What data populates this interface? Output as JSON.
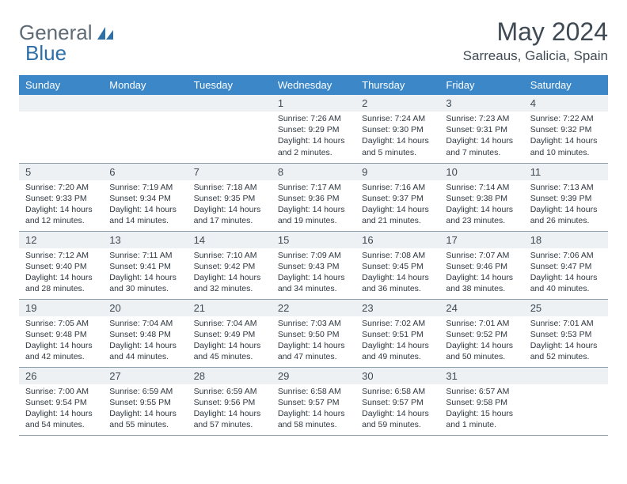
{
  "logo": {
    "text1": "General",
    "text2": "Blue"
  },
  "title": "May 2024",
  "location": "Sarreaus, Galicia, Spain",
  "colors": {
    "header_bg": "#3b87c8",
    "header_text": "#ffffff",
    "daynum_bg": "#eef1f3",
    "text": "#3f4a54",
    "border": "#8fa0ad"
  },
  "weekdays": [
    "Sunday",
    "Monday",
    "Tuesday",
    "Wednesday",
    "Thursday",
    "Friday",
    "Saturday"
  ],
  "weeks": [
    [
      null,
      null,
      null,
      {
        "n": "1",
        "sr": "7:26 AM",
        "ss": "9:29 PM",
        "dl": "14 hours and 2 minutes."
      },
      {
        "n": "2",
        "sr": "7:24 AM",
        "ss": "9:30 PM",
        "dl": "14 hours and 5 minutes."
      },
      {
        "n": "3",
        "sr": "7:23 AM",
        "ss": "9:31 PM",
        "dl": "14 hours and 7 minutes."
      },
      {
        "n": "4",
        "sr": "7:22 AM",
        "ss": "9:32 PM",
        "dl": "14 hours and 10 minutes."
      }
    ],
    [
      {
        "n": "5",
        "sr": "7:20 AM",
        "ss": "9:33 PM",
        "dl": "14 hours and 12 minutes."
      },
      {
        "n": "6",
        "sr": "7:19 AM",
        "ss": "9:34 PM",
        "dl": "14 hours and 14 minutes."
      },
      {
        "n": "7",
        "sr": "7:18 AM",
        "ss": "9:35 PM",
        "dl": "14 hours and 17 minutes."
      },
      {
        "n": "8",
        "sr": "7:17 AM",
        "ss": "9:36 PM",
        "dl": "14 hours and 19 minutes."
      },
      {
        "n": "9",
        "sr": "7:16 AM",
        "ss": "9:37 PM",
        "dl": "14 hours and 21 minutes."
      },
      {
        "n": "10",
        "sr": "7:14 AM",
        "ss": "9:38 PM",
        "dl": "14 hours and 23 minutes."
      },
      {
        "n": "11",
        "sr": "7:13 AM",
        "ss": "9:39 PM",
        "dl": "14 hours and 26 minutes."
      }
    ],
    [
      {
        "n": "12",
        "sr": "7:12 AM",
        "ss": "9:40 PM",
        "dl": "14 hours and 28 minutes."
      },
      {
        "n": "13",
        "sr": "7:11 AM",
        "ss": "9:41 PM",
        "dl": "14 hours and 30 minutes."
      },
      {
        "n": "14",
        "sr": "7:10 AM",
        "ss": "9:42 PM",
        "dl": "14 hours and 32 minutes."
      },
      {
        "n": "15",
        "sr": "7:09 AM",
        "ss": "9:43 PM",
        "dl": "14 hours and 34 minutes."
      },
      {
        "n": "16",
        "sr": "7:08 AM",
        "ss": "9:45 PM",
        "dl": "14 hours and 36 minutes."
      },
      {
        "n": "17",
        "sr": "7:07 AM",
        "ss": "9:46 PM",
        "dl": "14 hours and 38 minutes."
      },
      {
        "n": "18",
        "sr": "7:06 AM",
        "ss": "9:47 PM",
        "dl": "14 hours and 40 minutes."
      }
    ],
    [
      {
        "n": "19",
        "sr": "7:05 AM",
        "ss": "9:48 PM",
        "dl": "14 hours and 42 minutes."
      },
      {
        "n": "20",
        "sr": "7:04 AM",
        "ss": "9:48 PM",
        "dl": "14 hours and 44 minutes."
      },
      {
        "n": "21",
        "sr": "7:04 AM",
        "ss": "9:49 PM",
        "dl": "14 hours and 45 minutes."
      },
      {
        "n": "22",
        "sr": "7:03 AM",
        "ss": "9:50 PM",
        "dl": "14 hours and 47 minutes."
      },
      {
        "n": "23",
        "sr": "7:02 AM",
        "ss": "9:51 PM",
        "dl": "14 hours and 49 minutes."
      },
      {
        "n": "24",
        "sr": "7:01 AM",
        "ss": "9:52 PM",
        "dl": "14 hours and 50 minutes."
      },
      {
        "n": "25",
        "sr": "7:01 AM",
        "ss": "9:53 PM",
        "dl": "14 hours and 52 minutes."
      }
    ],
    [
      {
        "n": "26",
        "sr": "7:00 AM",
        "ss": "9:54 PM",
        "dl": "14 hours and 54 minutes."
      },
      {
        "n": "27",
        "sr": "6:59 AM",
        "ss": "9:55 PM",
        "dl": "14 hours and 55 minutes."
      },
      {
        "n": "28",
        "sr": "6:59 AM",
        "ss": "9:56 PM",
        "dl": "14 hours and 57 minutes."
      },
      {
        "n": "29",
        "sr": "6:58 AM",
        "ss": "9:57 PM",
        "dl": "14 hours and 58 minutes."
      },
      {
        "n": "30",
        "sr": "6:58 AM",
        "ss": "9:57 PM",
        "dl": "14 hours and 59 minutes."
      },
      {
        "n": "31",
        "sr": "6:57 AM",
        "ss": "9:58 PM",
        "dl": "15 hours and 1 minute."
      },
      null
    ]
  ],
  "labels": {
    "sunrise": "Sunrise:",
    "sunset": "Sunset:",
    "daylight": "Daylight:"
  }
}
